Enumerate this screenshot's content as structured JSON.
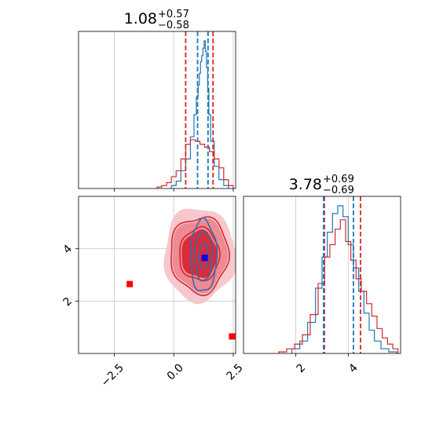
{
  "chart_data": [
    {
      "type": "histogram",
      "panel": "x-marginal",
      "title": {
        "value": "1.08",
        "upper": "+0.57",
        "lower": "−0.58"
      },
      "xlim": [
        -4.0,
        2.6
      ],
      "grid": true,
      "quantile_lines": {
        "red": [
          0.5,
          1.65
        ],
        "blue": [
          1.0,
          1.44
        ]
      },
      "series": [
        {
          "color": "#1f77b4",
          "bin_centers": [
            0.0,
            0.2,
            0.4,
            0.6,
            0.8,
            0.9,
            1.0,
            1.05,
            1.1,
            1.15,
            1.2,
            1.25,
            1.3,
            1.35,
            1.4,
            1.45,
            1.5,
            1.6,
            1.8,
            2.0,
            2.2
          ],
          "density": [
            0.02,
            0.05,
            0.12,
            0.2,
            0.35,
            0.5,
            0.62,
            0.7,
            0.78,
            0.86,
            0.9,
            0.95,
            1.0,
            0.93,
            0.82,
            0.68,
            0.5,
            0.32,
            0.15,
            0.06,
            0.02
          ]
        },
        {
          "color": "#d62728",
          "bin_centers": [
            -0.6,
            -0.4,
            -0.2,
            0.0,
            0.2,
            0.4,
            0.6,
            0.8,
            1.0,
            1.2,
            1.4,
            1.6,
            1.8,
            2.0,
            2.2,
            2.4
          ],
          "density": [
            0.01,
            0.02,
            0.04,
            0.08,
            0.12,
            0.2,
            0.3,
            0.33,
            0.32,
            0.3,
            0.28,
            0.25,
            0.2,
            0.14,
            0.06,
            0.02
          ]
        }
      ]
    },
    {
      "type": "contour",
      "panel": "joint",
      "xticks": [
        "−2.5",
        "0.0",
        "2.5"
      ],
      "yticks": [
        "2",
        "4"
      ],
      "xlim": [
        -4.0,
        2.6
      ],
      "ylim": [
        0.0,
        6.0
      ],
      "grid": true,
      "red_contours": {
        "center": [
          1.08,
          3.78
        ],
        "sigma": [
          0.58,
          0.69
        ]
      },
      "blue_contours": {
        "center": [
          1.25,
          3.72
        ],
        "sigma": [
          0.22,
          0.55
        ]
      },
      "markers": [
        {
          "color": "#ff0000",
          "x": -1.85,
          "y": 2.65
        },
        {
          "color": "#ff0000",
          "x": 2.45,
          "y": 0.65
        },
        {
          "color": "#0000ff",
          "x": 1.3,
          "y": 3.65
        }
      ]
    },
    {
      "type": "histogram",
      "panel": "y-marginal",
      "title": {
        "value": "3.78",
        "upper": "+0.69",
        "lower": "−0.69"
      },
      "xticks": [
        "2",
        "4"
      ],
      "xlim": [
        0.0,
        6.0
      ],
      "grid": true,
      "quantile_lines": {
        "red": [
          3.09,
          4.47
        ],
        "blue": [
          3.06,
          4.2
        ]
      },
      "series": [
        {
          "color": "#1f77b4",
          "bin_centers": [
            2.0,
            2.3,
            2.6,
            2.9,
            3.1,
            3.3,
            3.5,
            3.7,
            3.9,
            4.1,
            4.3,
            4.5,
            4.7,
            4.9,
            5.1,
            5.4,
            5.7
          ],
          "density": [
            0.03,
            0.08,
            0.2,
            0.42,
            0.62,
            0.78,
            0.9,
            0.95,
            0.88,
            0.7,
            0.55,
            0.4,
            0.26,
            0.15,
            0.08,
            0.03,
            0.01
          ]
        },
        {
          "color": "#d62728",
          "bin_centers": [
            1.5,
            1.8,
            2.1,
            2.4,
            2.7,
            3.0,
            3.2,
            3.4,
            3.6,
            3.8,
            4.0,
            4.2,
            4.4,
            4.6,
            4.8,
            5.0,
            5.2,
            5.4,
            5.6,
            5.8
          ],
          "density": [
            0.01,
            0.03,
            0.06,
            0.12,
            0.25,
            0.45,
            0.62,
            0.7,
            0.8,
            0.86,
            0.72,
            0.6,
            0.48,
            0.4,
            0.32,
            0.24,
            0.16,
            0.1,
            0.06,
            0.03
          ]
        }
      ]
    }
  ]
}
